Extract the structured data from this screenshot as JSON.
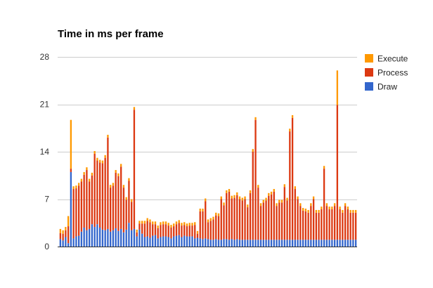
{
  "chart_data": {
    "type": "bar",
    "stacked": true,
    "title": "Time in ms per frame",
    "xlabel": "",
    "ylabel": "",
    "ylim": [
      0,
      28
    ],
    "yticks": [
      0,
      7,
      14,
      21,
      28
    ],
    "grid": true,
    "legend_position": "right",
    "series": [
      {
        "name": "Draw",
        "color": "#3366cc",
        "values": [
          1.1,
          0.9,
          1.4,
          0.5,
          11,
          1.2,
          1.5,
          1.6,
          2.2,
          2.8,
          2.4,
          2.6,
          3.3,
          2.9,
          3.3,
          2.8,
          2.5,
          2.4,
          2.6,
          2.2,
          2.4,
          2.7,
          2.3,
          2.6,
          2.1,
          2.5,
          3.5,
          2.4,
          2.6,
          1.5,
          2.5,
          1.9,
          1.4,
          1.5,
          1.3,
          1.6,
          1.7,
          1.2,
          1.4,
          1.5,
          1.5,
          1.4,
          1.2,
          1.5,
          1.6,
          1.7,
          1.4,
          1.6,
          1.5,
          1.5,
          1.5,
          1.2,
          1.3,
          1.2,
          1.1,
          1.2,
          1.1,
          1.0,
          1.0,
          1.1,
          1.0,
          1.0,
          1.1,
          1.1,
          1.0,
          1.1,
          1.0,
          1.1,
          1.0,
          1.0,
          1.0,
          1.0,
          1.0,
          1.0,
          1.0,
          1.0,
          1.0,
          1.0,
          1.0,
          1.0,
          1.0,
          1.0,
          1.0,
          1.0,
          1.0,
          1.0,
          1.0,
          1.0,
          1.0,
          1.0,
          1.0,
          1.0,
          1.0,
          1.0,
          1.0,
          1.0,
          1.0,
          1.0,
          1.0,
          1.0,
          1.0,
          1.0,
          1.0,
          1.0,
          1.0,
          1.0,
          1.0,
          1.0,
          1.0,
          1.0,
          1.0,
          1.0,
          1.0
        ]
      },
      {
        "name": "Process",
        "color": "#dc3912",
        "values": [
          0.9,
          1.0,
          1.0,
          2.5,
          0.5,
          7.3,
          7.1,
          7.4,
          7.4,
          7.8,
          8.9,
          7.0,
          7.2,
          10.8,
          9.4,
          9.6,
          9.8,
          10.7,
          13.5,
          6.5,
          6.6,
          8.2,
          8.1,
          9.2,
          6.6,
          4.4,
          6.2,
          4.2,
          17.6,
          0.6,
          0.9,
          1.5,
          2.0,
          2.3,
          2.3,
          1.7,
          1.6,
          1.5,
          1.8,
          1.8,
          1.8,
          1.7,
          1.6,
          1.5,
          1.7,
          1.8,
          1.7,
          1.6,
          1.5,
          1.6,
          1.6,
          2.0,
          0.6,
          4.0,
          4.1,
          5.5,
          2.5,
          2.8,
          3.0,
          3.5,
          3.5,
          6.0,
          5.0,
          6.8,
          7.1,
          6.0,
          6.2,
          6.5,
          6.0,
          5.8,
          6.0,
          4.8,
          6.9,
          13.0,
          17.7,
          7.7,
          5.0,
          5.5,
          5.8,
          6.5,
          6.7,
          7.1,
          5.0,
          5.5,
          5.5,
          7.8,
          5.8,
          16.0,
          18.0,
          7.5,
          6.0,
          5.0,
          4.3,
          4.2,
          4.0,
          5.0,
          6.0,
          4.0,
          4.0,
          4.5,
          10.5,
          5.0,
          4.5,
          4.5,
          5.0,
          19.9,
          4.5,
          4.0,
          5.0,
          4.5,
          4.0,
          4.0,
          4.0,
          4.0,
          4.0
        ]
      },
      {
        "name": "Execute",
        "color": "#ff9900",
        "values": [
          0.6,
          0.5,
          0.5,
          1.5,
          7.2,
          0.4,
          0.4,
          0.4,
          0.4,
          0.4,
          0.4,
          0.4,
          0.4,
          0.4,
          0.4,
          0.4,
          0.4,
          0.4,
          0.4,
          0.4,
          0.4,
          0.4,
          0.4,
          0.4,
          0.4,
          0.4,
          0.4,
          0.4,
          0.4,
          0.4,
          0.4,
          0.4,
          0.4,
          0.4,
          0.4,
          0.4,
          0.4,
          0.4,
          0.4,
          0.4,
          0.4,
          0.4,
          0.4,
          0.4,
          0.4,
          0.4,
          0.4,
          0.4,
          0.4,
          0.4,
          0.4,
          0.4,
          0.4,
          0.4,
          0.4,
          0.4,
          0.4,
          0.4,
          0.4,
          0.4,
          0.4,
          0.4,
          0.4,
          0.4,
          0.4,
          0.4,
          0.4,
          0.4,
          0.4,
          0.4,
          0.4,
          0.4,
          0.4,
          0.4,
          0.4,
          0.4,
          0.4,
          0.4,
          0.4,
          0.4,
          0.4,
          0.4,
          0.4,
          0.4,
          0.4,
          0.4,
          0.4,
          0.4,
          0.4,
          0.4,
          0.4,
          0.4,
          0.4,
          0.4,
          0.4,
          0.4,
          0.4,
          0.4,
          0.4,
          0.4,
          0.4,
          0.4,
          0.4,
          0.4,
          0.4,
          5.1,
          0.4,
          0.4,
          0.4,
          0.4,
          0.4,
          0.4,
          0.4,
          0.4,
          0.4
        ]
      }
    ]
  }
}
